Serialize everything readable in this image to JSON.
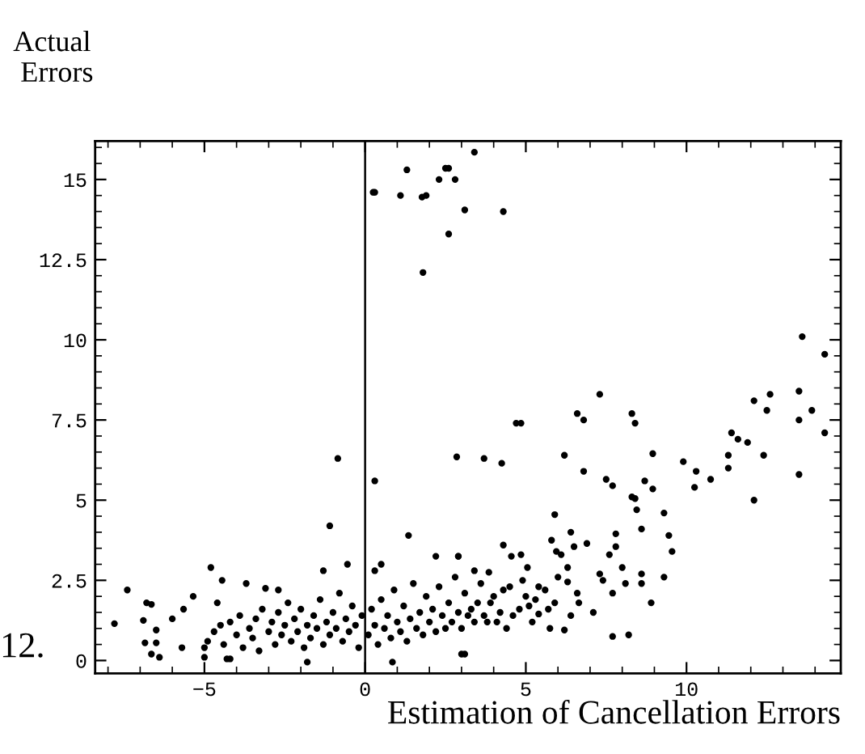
{
  "chart_data": {
    "type": "scatter",
    "xlabel": "Estimation of Cancellation Errors",
    "ylabel": "Actual\n Errors",
    "annotations": [
      "12."
    ],
    "marker": "circle",
    "grid": false,
    "xlim": [
      -8.4,
      14.8
    ],
    "ylim": [
      -0.4,
      16.2
    ],
    "xticks": [
      {
        "value": -8,
        "label": null
      },
      {
        "value": -7,
        "label": null
      },
      {
        "value": -6,
        "label": null
      },
      {
        "value": -5,
        "label": "−5"
      },
      {
        "value": -4,
        "label": null
      },
      {
        "value": -3,
        "label": null
      },
      {
        "value": -2,
        "label": null
      },
      {
        "value": -1,
        "label": null
      },
      0,
      {
        "value": 1,
        "label": null
      },
      {
        "value": 2,
        "label": null
      },
      {
        "value": 3,
        "label": null
      },
      {
        "value": 4,
        "label": null
      },
      5,
      {
        "value": 6,
        "label": null
      },
      {
        "value": 7,
        "label": null
      },
      {
        "value": 8,
        "label": null
      },
      {
        "value": 9,
        "label": null
      },
      10,
      {
        "value": 11,
        "label": null
      },
      {
        "value": 12,
        "label": null
      },
      {
        "value": 13,
        "label": null
      },
      {
        "value": 14,
        "label": null
      }
    ],
    "yticks": [
      0,
      {
        "value": 0.5,
        "label": null
      },
      {
        "value": 1,
        "label": null
      },
      {
        "value": 1.5,
        "label": null
      },
      {
        "value": 2,
        "label": null
      },
      2.5,
      {
        "value": 3,
        "label": null
      },
      {
        "value": 3.5,
        "label": null
      },
      {
        "value": 4,
        "label": null
      },
      {
        "value": 4.5,
        "label": null
      },
      5,
      {
        "value": 5.5,
        "label": null
      },
      {
        "value": 6,
        "label": null
      },
      {
        "value": 6.5,
        "label": null
      },
      {
        "value": 7,
        "label": null
      },
      7.5,
      {
        "value": 8,
        "label": null
      },
      {
        "value": 8.5,
        "label": null
      },
      {
        "value": 9,
        "label": null
      },
      {
        "value": 9.5,
        "label": null
      },
      10,
      {
        "value": 10.5,
        "label": null
      },
      {
        "value": 11,
        "label": null
      },
      {
        "value": 11.5,
        "label": null
      },
      {
        "value": 12,
        "label": null
      },
      12.5,
      {
        "value": 13,
        "label": null
      },
      {
        "value": 13.5,
        "label": null
      },
      {
        "value": 14,
        "label": null
      },
      {
        "value": 14.5,
        "label": null
      },
      15,
      {
        "value": 15.5,
        "label": null
      },
      {
        "value": 16,
        "label": null
      }
    ],
    "ref_lines": [
      {
        "axis": "x",
        "value": 0,
        "color": "#000000"
      }
    ],
    "series": [
      {
        "color": "#000000",
        "x": [
          0.3,
          0.25,
          1.3,
          1.1,
          1.77,
          1.9,
          2.3,
          2.5,
          2.6,
          2.8,
          3.4,
          3.1,
          2.6,
          1.8,
          4.3,
          13.6,
          14.3,
          13.5,
          12.6,
          12.1,
          12.5,
          13.9,
          13.5,
          14.3,
          11.4,
          11.6,
          11.9,
          11.3,
          12.4,
          11.3,
          13.5,
          12.1,
          9.9,
          10.3,
          10.25,
          10.75,
          8.95,
          8.7,
          8.95,
          8.3,
          8.4,
          8.45,
          9.3,
          7.3,
          8.3,
          8.4,
          6.6,
          6.8,
          4.7,
          4.85,
          6.2,
          6.8,
          7.5,
          7.7,
          5.9,
          2.85,
          3.7,
          4.25,
          9.3,
          8.9,
          8.2,
          7.7,
          9.45,
          9.55,
          8.6,
          8.6,
          8.6,
          8.0,
          8.1,
          7.8,
          7.8,
          7.6,
          7.7,
          7.3,
          7.4,
          7.1,
          6.9,
          6.4,
          6.5,
          6.3,
          6.3,
          6.6,
          6.65,
          6.4,
          6.2,
          5.8,
          5.95,
          6.1,
          6.0,
          5.9,
          5.75,
          5.4,
          5.05,
          4.85,
          4.55,
          4.3,
          3.85,
          3.4,
          2.9,
          3.0,
          4.5,
          4.8,
          5.0,
          4.2,
          4.0,
          3.5,
          3.2,
          3.8,
          4.4,
          5.3,
          5.6,
          5.2,
          -1.1,
          1.35,
          -4.8,
          -7.4,
          -7.8,
          -6.8,
          -6.65,
          -6.9,
          -6.85,
          -6.5,
          -6.5,
          -6.65,
          -6.4,
          -6.0,
          -5.65,
          -5.7,
          -5.35,
          -5.0,
          -5.0,
          -4.45,
          -3.7,
          -4.6,
          -4.3,
          -4.2,
          -1.3,
          -0.55,
          0.5,
          2.2,
          2.9,
          0.85,
          3.1,
          -1.8,
          -3.1,
          -2.7,
          -0.85,
          0.3,
          0.3,
          -4.9,
          -4.7,
          -4.5,
          -4.4,
          -4.2,
          -4.0,
          -3.9,
          -3.8,
          -3.6,
          -3.5,
          -3.4,
          -3.3,
          -3.2,
          -3.0,
          -2.9,
          -2.8,
          -2.7,
          -2.6,
          -2.5,
          -2.4,
          -2.3,
          -2.2,
          -2.1,
          -2.0,
          -1.9,
          -1.8,
          -1.7,
          -1.6,
          -1.5,
          -1.4,
          -1.3,
          -1.2,
          -1.1,
          -1.0,
          -0.9,
          -0.8,
          -0.7,
          -0.6,
          -0.5,
          -0.4,
          -0.3,
          -0.2,
          -0.1,
          0.1,
          0.2,
          0.3,
          0.4,
          0.5,
          0.6,
          0.7,
          0.8,
          0.9,
          1.0,
          1.1,
          1.2,
          1.3,
          1.4,
          1.5,
          1.6,
          1.7,
          1.8,
          1.9,
          2.0,
          2.1,
          2.2,
          2.3,
          2.4,
          2.5,
          2.6,
          2.7,
          2.8,
          2.9,
          3.0,
          3.1,
          3.3,
          3.4,
          3.6,
          3.7,
          3.9,
          4.1,
          4.3,
          4.6,
          4.9,
          5.1,
          5.4,
          5.7
        ],
        "values": [
          14.6,
          14.6,
          15.3,
          14.5,
          14.45,
          14.5,
          15.0,
          15.35,
          15.35,
          15.0,
          15.85,
          14.05,
          13.3,
          12.1,
          14.0,
          10.1,
          9.55,
          8.4,
          8.3,
          8.1,
          7.8,
          7.8,
          7.5,
          7.1,
          7.1,
          6.9,
          6.8,
          6.4,
          6.4,
          6.0,
          5.8,
          5.0,
          6.2,
          5.9,
          5.4,
          5.65,
          6.45,
          5.6,
          5.35,
          5.1,
          5.05,
          4.7,
          4.6,
          8.3,
          7.7,
          7.4,
          7.7,
          7.5,
          7.4,
          7.4,
          6.4,
          5.9,
          5.65,
          5.45,
          4.55,
          6.35,
          6.3,
          6.15,
          2.6,
          1.8,
          0.8,
          0.75,
          3.9,
          3.4,
          4.1,
          2.7,
          2.4,
          2.9,
          2.4,
          3.95,
          3.55,
          3.3,
          2.1,
          2.7,
          2.5,
          1.5,
          3.65,
          4.0,
          3.55,
          2.9,
          2.45,
          2.1,
          1.8,
          1.4,
          0.95,
          3.75,
          3.4,
          3.3,
          2.6,
          1.8,
          1.0,
          1.45,
          2.9,
          3.3,
          3.25,
          3.6,
          2.75,
          2.8,
          3.25,
          0.2,
          2.3,
          1.6,
          2.0,
          1.5,
          2.0,
          1.8,
          1.4,
          1.2,
          1.0,
          1.9,
          2.2,
          1.2,
          4.2,
          3.9,
          2.9,
          2.2,
          1.15,
          1.8,
          1.75,
          1.25,
          0.55,
          0.55,
          0.95,
          0.2,
          0.1,
          1.3,
          1.6,
          0.4,
          2.0,
          0.4,
          0.1,
          2.5,
          2.4,
          1.8,
          0.05,
          0.05,
          2.8,
          3.0,
          3.0,
          3.25,
          3.25,
          -0.05,
          0.2,
          -0.05,
          2.25,
          2.2,
          6.3,
          5.6,
          2.8,
          0.6,
          0.9,
          1.1,
          0.5,
          1.2,
          0.8,
          1.4,
          0.4,
          1.0,
          0.7,
          1.3,
          0.3,
          1.6,
          0.9,
          1.2,
          0.5,
          1.5,
          0.8,
          1.1,
          1.8,
          0.6,
          1.3,
          0.9,
          1.6,
          0.4,
          1.1,
          0.7,
          1.4,
          1.0,
          1.9,
          0.5,
          1.2,
          0.8,
          1.5,
          1.0,
          2.1,
          0.6,
          1.3,
          0.9,
          1.7,
          1.1,
          0.4,
          1.4,
          0.8,
          1.6,
          1.1,
          0.5,
          1.9,
          1.0,
          1.4,
          0.7,
          2.2,
          1.2,
          0.9,
          1.7,
          0.6,
          1.3,
          2.4,
          1.0,
          1.5,
          0.8,
          2.0,
          1.2,
          1.6,
          0.9,
          2.3,
          1.4,
          1.0,
          1.8,
          1.2,
          2.6,
          1.5,
          1.0,
          2.1,
          1.6,
          1.2,
          2.4,
          1.4,
          1.8,
          1.2,
          2.2,
          1.4,
          2.5,
          1.7,
          2.3,
          1.6
        ]
      }
    ]
  }
}
